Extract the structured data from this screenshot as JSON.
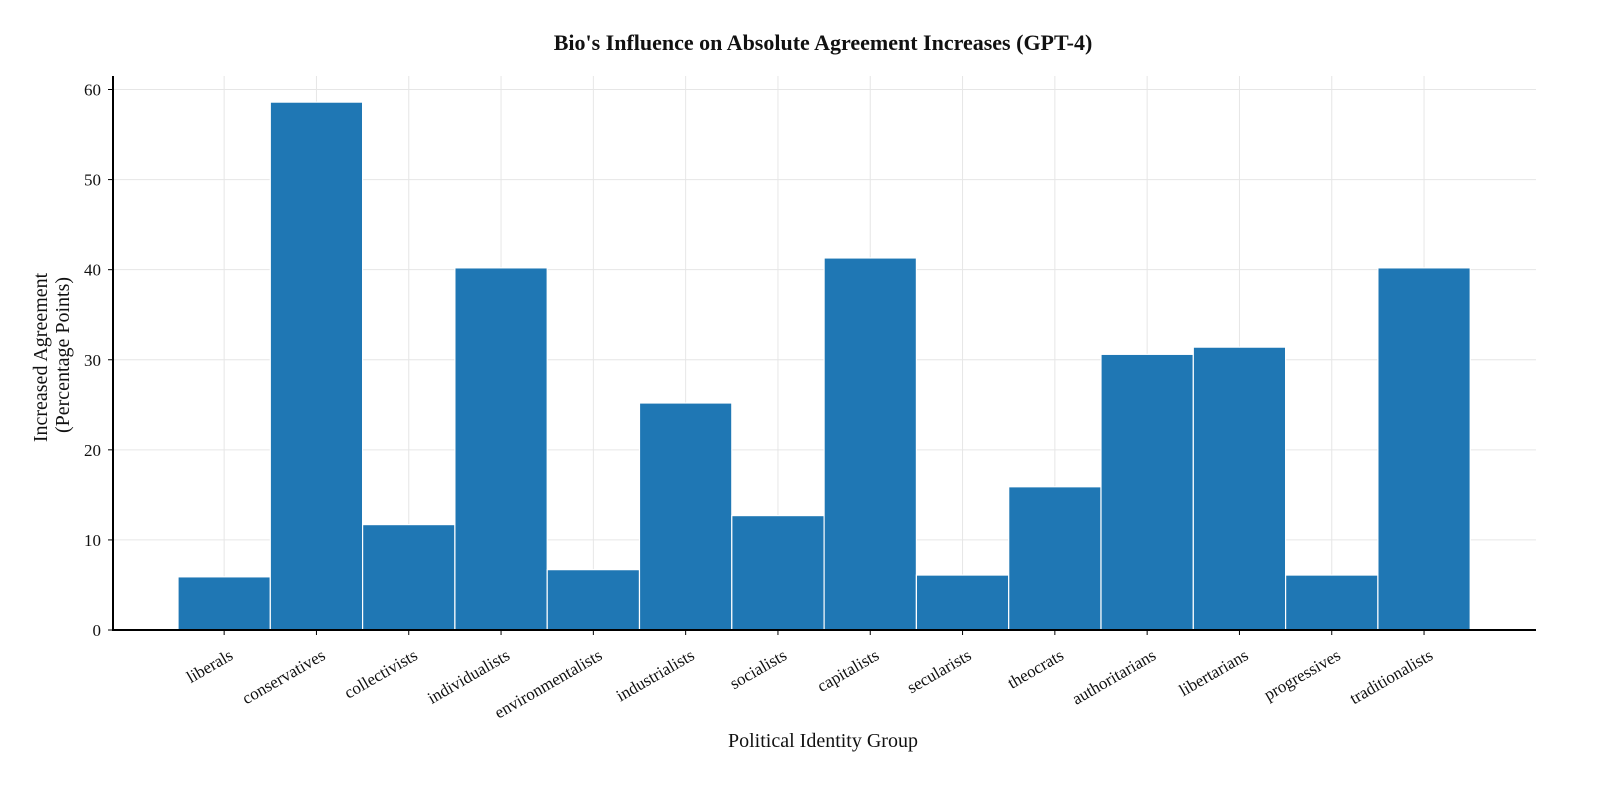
{
  "chart_data": {
    "type": "bar",
    "title": "Bio's Influence on Absolute Agreement Increases (GPT-4)",
    "xlabel": "Political Identity Group",
    "ylabel_lines": [
      "Increased Agreement",
      "(Percentage Points)"
    ],
    "categories": [
      "liberals",
      "conservatives",
      "collectivists",
      "individualists",
      "environmentalists",
      "industrialists",
      "socialists",
      "capitalists",
      "secularists",
      "theocrats",
      "authoritarians",
      "libertarians",
      "progressives",
      "traditionalists"
    ],
    "values": [
      5.9,
      58.6,
      11.7,
      40.2,
      6.7,
      25.2,
      12.7,
      41.3,
      6.1,
      15.9,
      30.6,
      31.4,
      6.1,
      40.2
    ],
    "ylim": [
      0,
      61.5
    ],
    "yticks": [
      0,
      10,
      20,
      30,
      40,
      50,
      60
    ],
    "grid": true,
    "bar_color": "#1f77b4"
  }
}
